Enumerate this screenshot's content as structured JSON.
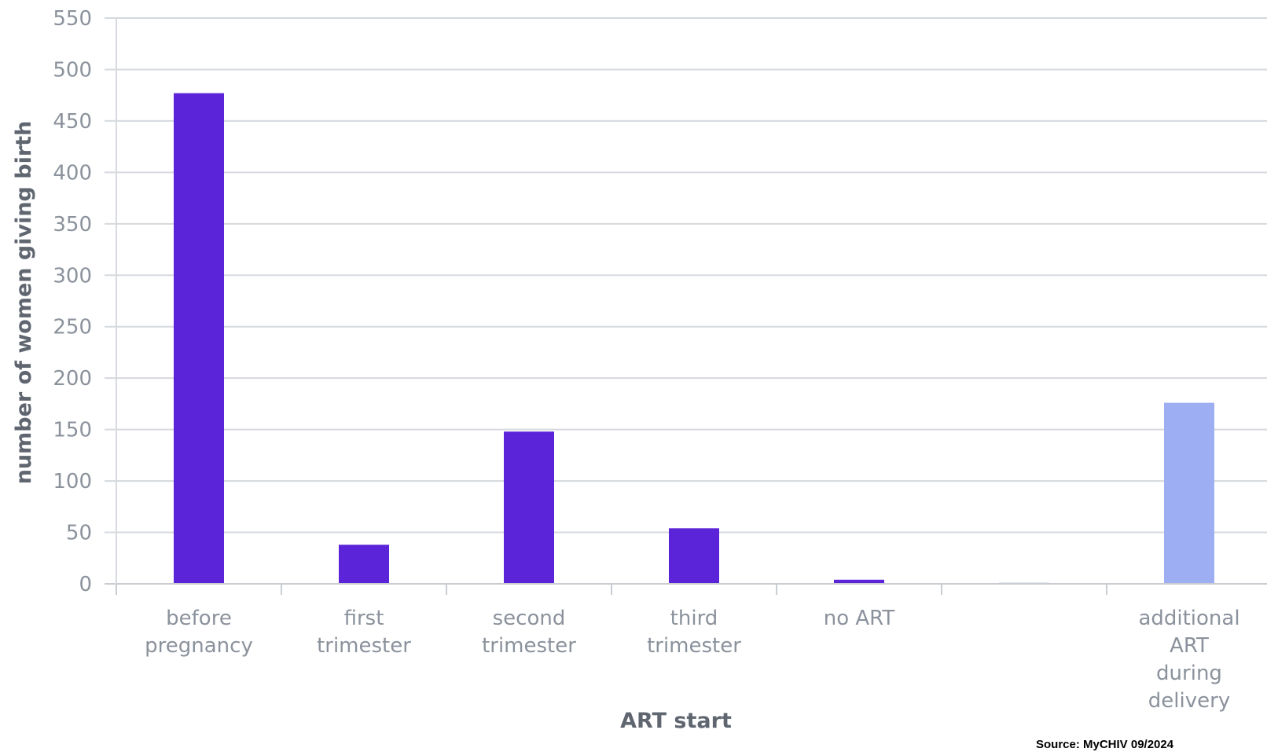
{
  "chart_data": {
    "type": "bar",
    "title": "",
    "xlabel": "ART start",
    "ylabel": "number of women giving birth",
    "ylim": [
      0,
      550
    ],
    "yticks": [
      0,
      50,
      100,
      150,
      200,
      250,
      300,
      350,
      400,
      450,
      500,
      550
    ],
    "grid": true,
    "categories": [
      [
        "before",
        "pregnancy"
      ],
      [
        "first",
        "trimester"
      ],
      [
        "second",
        "trimester"
      ],
      [
        "third",
        "trimester"
      ],
      [
        "no ART"
      ],
      [
        ""
      ],
      [
        "additional",
        "ART",
        "during",
        "delivery"
      ]
    ],
    "values": [
      477,
      38,
      148,
      54,
      4,
      0,
      176
    ],
    "colors": [
      "#5b24d9",
      "#5b24d9",
      "#5b24d9",
      "#5b24d9",
      "#5b24d9",
      "#5b24d9",
      "#9daef2"
    ],
    "source_note": "Source: MyCHIV 09/2024"
  }
}
